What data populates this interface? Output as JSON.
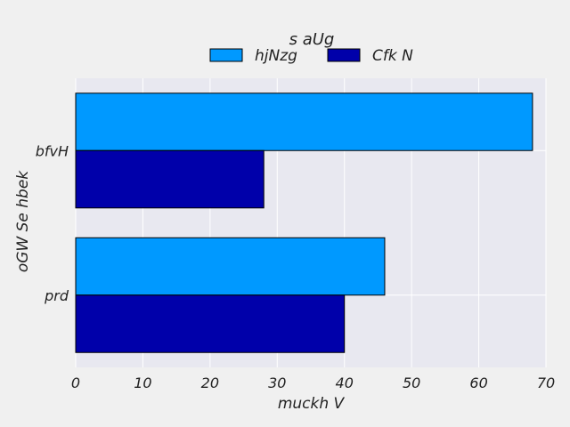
{
  "chart_data": {
    "type": "bar",
    "orientation": "horizontal",
    "title": "s aUg",
    "xlabel": "muckh V",
    "ylabel": "oGW Se hbek",
    "categories": [
      "bfvH",
      "prd"
    ],
    "series": [
      {
        "name": "hjNzg",
        "values": [
          68,
          46
        ],
        "color": "#0099ff"
      },
      {
        "name": "Cfk N",
        "values": [
          28,
          40
        ],
        "color": "#0000aa"
      }
    ],
    "xlim": [
      0,
      70
    ],
    "xticks": [
      0,
      10,
      20,
      30,
      40,
      50,
      60,
      70
    ],
    "grid": true,
    "legend_position": "top-center",
    "plot_background": "#e8e8f0",
    "figure_background": "#f0f0f0"
  }
}
